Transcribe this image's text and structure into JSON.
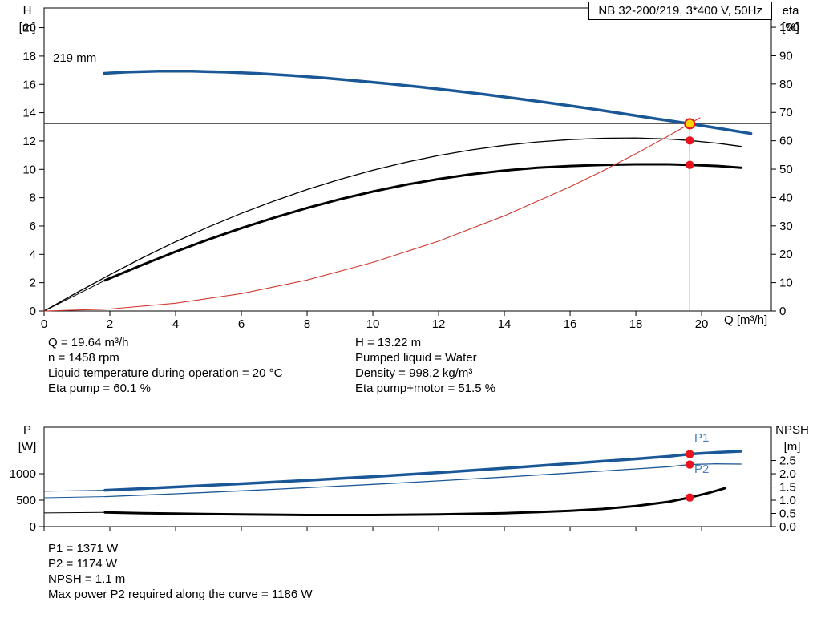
{
  "axes_text": {
    "h": [
      "H",
      "[m]"
    ],
    "eta": [
      "eta",
      "[%]"
    ],
    "q": "Q [m³/h]",
    "p": [
      "P",
      "[W]"
    ],
    "npsh": [
      "NPSH",
      "[m]"
    ]
  },
  "info_top_left": [
    "Q = 19.64 m³/h",
    "n = 1458 rpm",
    "Liquid temperature during operation = 20 °C",
    "Eta pump = 60.1 %"
  ],
  "info_top_right": [
    "H = 13.22 m",
    "Pumped liquid = Water",
    "Density = 998.2 kg/m³",
    "Eta pump+motor = 51.5 %"
  ],
  "info_bottom": [
    "P1 = 1371 W",
    "P2 = 1174 W",
    "NPSH = 1.1 m",
    "Max power P2 required along the curve = 1186 W"
  ],
  "colors": {
    "curve_blue": "#1a5796",
    "curve_black": "#000000",
    "curve_red": "#d03a30",
    "dot_red": "#e8131d",
    "dot_yellow": "#ffd400",
    "label_blue": "#4d7ebf",
    "duty_line": "#444444"
  },
  "chart_data": [
    {
      "type": "line",
      "title": "NB 32-200/219, 3*400 V, 50Hz",
      "x_axis": {
        "label": "Q [m³/h]",
        "min": 0,
        "max": 20,
        "tick_step": 2,
        "overshoot_max": 22.12
      },
      "y_left": {
        "label": "H [m]",
        "min": 0,
        "max": 20,
        "tick_step": 2,
        "overshoot_max": 21.39
      },
      "y_right": {
        "label": "eta [%]",
        "min": 0,
        "max": 100,
        "tick_step": 10,
        "overshoot_max": 106.8
      },
      "duty_point": {
        "q": 19.64,
        "h": 13.22
      },
      "series": [
        {
          "name": "head-curve",
          "label": "219 mm",
          "axis": "left",
          "color": "blue",
          "width": 3.5,
          "points": [
            [
              1.83,
              16.78
            ],
            [
              2.5,
              16.87
            ],
            [
              3.5,
              16.93
            ],
            [
              4.5,
              16.93
            ],
            [
              5.5,
              16.87
            ],
            [
              6.5,
              16.77
            ],
            [
              7.5,
              16.63
            ],
            [
              8.5,
              16.46
            ],
            [
              9.5,
              16.26
            ],
            [
              10.5,
              16.04
            ],
            [
              11.5,
              15.8
            ],
            [
              12.5,
              15.54
            ],
            [
              13.5,
              15.26
            ],
            [
              14.5,
              14.96
            ],
            [
              15.5,
              14.65
            ],
            [
              16.5,
              14.32
            ],
            [
              17.5,
              13.97
            ],
            [
              18.5,
              13.61
            ],
            [
              19.64,
              13.22
            ],
            [
              20.6,
              12.87
            ],
            [
              21.5,
              12.52
            ]
          ]
        },
        {
          "name": "eta-pump",
          "axis": "right",
          "color": "black",
          "width": 1.3,
          "points": [
            [
              0,
              0
            ],
            [
              1,
              6.5
            ],
            [
              2,
              12.8
            ],
            [
              3,
              18.8
            ],
            [
              4,
              24.4
            ],
            [
              5,
              29.6
            ],
            [
              6,
              34.4
            ],
            [
              7,
              38.8
            ],
            [
              8,
              42.8
            ],
            [
              9,
              46.4
            ],
            [
              10,
              49.6
            ],
            [
              11,
              52.4
            ],
            [
              12,
              54.8
            ],
            [
              13,
              56.8
            ],
            [
              14,
              58.4
            ],
            [
              15,
              59.6
            ],
            [
              16,
              60.4
            ],
            [
              17,
              60.9
            ],
            [
              18,
              61.0
            ],
            [
              19,
              60.6
            ],
            [
              19.64,
              60.1
            ],
            [
              20.5,
              59.1
            ],
            [
              21.2,
              58.0
            ]
          ]
        },
        {
          "name": "eta-pump-motor",
          "axis": "right",
          "color": "black",
          "width": 3,
          "lead": [
            [
              0,
              0
            ],
            [
              1.85,
              10.8
            ]
          ],
          "points": [
            [
              1.85,
              10.8
            ],
            [
              3,
              16.3
            ],
            [
              4,
              20.9
            ],
            [
              5,
              25.2
            ],
            [
              6,
              29.2
            ],
            [
              7,
              32.9
            ],
            [
              8,
              36.3
            ],
            [
              9,
              39.4
            ],
            [
              10,
              42.1
            ],
            [
              11,
              44.5
            ],
            [
              12,
              46.5
            ],
            [
              13,
              48.2
            ],
            [
              14,
              49.5
            ],
            [
              15,
              50.5
            ],
            [
              16,
              51.1
            ],
            [
              17,
              51.5
            ],
            [
              18,
              51.7
            ],
            [
              19,
              51.7
            ],
            [
              19.64,
              51.5
            ],
            [
              20.5,
              51.1
            ],
            [
              21.2,
              50.5
            ]
          ]
        },
        {
          "name": "system-curve",
          "axis": "left",
          "color": "red",
          "width": 1.1,
          "points": [
            [
              0,
              0
            ],
            [
              2,
              0.14
            ],
            [
              4,
              0.55
            ],
            [
              6,
              1.23
            ],
            [
              8,
              2.19
            ],
            [
              10,
              3.43
            ],
            [
              12,
              4.93
            ],
            [
              14,
              6.72
            ],
            [
              16,
              8.77
            ],
            [
              17,
              9.9
            ],
            [
              18,
              11.1
            ],
            [
              19,
              12.37
            ],
            [
              19.64,
              13.22
            ],
            [
              19.95,
              13.64
            ]
          ]
        }
      ],
      "markers": [
        {
          "q": 19.64,
          "value": 13.22,
          "axis": "left",
          "style": "yellow"
        },
        {
          "q": 19.64,
          "value": 60.1,
          "axis": "right",
          "style": "red"
        },
        {
          "q": 19.64,
          "value": 51.5,
          "axis": "right",
          "style": "red"
        }
      ]
    },
    {
      "type": "line",
      "x_axis": {
        "label": "Q [m³/h]",
        "min": 0,
        "max": 20,
        "tick_step": 2,
        "overshoot_max": 22.12,
        "show_labels": false
      },
      "y_left": {
        "label": "P [W]",
        "min": 0,
        "max": 1000,
        "tick_step": 500,
        "overshoot_max": 1879
      },
      "y_right": {
        "label": "NPSH [m]",
        "min": 0,
        "max": 2.5,
        "tick_step": 0.5,
        "overshoot_max": 3.76,
        "decimals": 1
      },
      "series": [
        {
          "name": "p1-power",
          "axis": "left",
          "color": "blue",
          "width": 3.5,
          "lead": [
            [
              0,
              668
            ],
            [
              1.85,
              688
            ]
          ],
          "points": [
            [
              1.85,
              688
            ],
            [
              3,
              720
            ],
            [
              4,
              750
            ],
            [
              5,
              780
            ],
            [
              6,
              811
            ],
            [
              7,
              843
            ],
            [
              8,
              876
            ],
            [
              9,
              910
            ],
            [
              10,
              946
            ],
            [
              11,
              983
            ],
            [
              12,
              1022
            ],
            [
              13,
              1062
            ],
            [
              14,
              1104
            ],
            [
              15,
              1147
            ],
            [
              16,
              1191
            ],
            [
              17,
              1236
            ],
            [
              18,
              1281
            ],
            [
              19,
              1327
            ],
            [
              19.64,
              1371
            ],
            [
              20.5,
              1403
            ],
            [
              21.2,
              1425
            ]
          ]
        },
        {
          "name": "p2-power",
          "axis": "left",
          "color": "blue",
          "width": 1.3,
          "lead": [
            [
              0,
              545
            ],
            [
              1.85,
              567
            ]
          ],
          "points": [
            [
              1.85,
              567
            ],
            [
              3,
              596
            ],
            [
              4,
              622
            ],
            [
              5,
              649
            ],
            [
              6,
              677
            ],
            [
              7,
              706
            ],
            [
              8,
              736
            ],
            [
              9,
              767
            ],
            [
              10,
              799
            ],
            [
              11,
              832
            ],
            [
              12,
              866
            ],
            [
              13,
              901
            ],
            [
              14,
              937
            ],
            [
              15,
              974
            ],
            [
              16,
              1012
            ],
            [
              17,
              1051
            ],
            [
              18,
              1091
            ],
            [
              19,
              1132
            ],
            [
              19.64,
              1174
            ],
            [
              20.4,
              1186
            ],
            [
              21.2,
              1182
            ]
          ]
        },
        {
          "name": "npsh",
          "axis": "right",
          "color": "black",
          "width": 3,
          "lead": [
            [
              0,
              0.52
            ],
            [
              1.85,
              0.54
            ]
          ],
          "points": [
            [
              1.85,
              0.54
            ],
            [
              3,
              0.51
            ],
            [
              4,
              0.49
            ],
            [
              6,
              0.46
            ],
            [
              8,
              0.44
            ],
            [
              10,
              0.44
            ],
            [
              12,
              0.46
            ],
            [
              14,
              0.51
            ],
            [
              15,
              0.55
            ],
            [
              16,
              0.6
            ],
            [
              17,
              0.67
            ],
            [
              18,
              0.78
            ],
            [
              19,
              0.94
            ],
            [
              19.64,
              1.1
            ],
            [
              20.2,
              1.27
            ],
            [
              20.7,
              1.45
            ]
          ]
        }
      ],
      "markers": [
        {
          "q": 19.64,
          "value": 1371,
          "axis": "left",
          "style": "red",
          "label": "P1"
        },
        {
          "q": 19.64,
          "value": 1174,
          "axis": "left",
          "style": "red",
          "label": "P2"
        },
        {
          "q": 19.64,
          "value": 1.1,
          "axis": "right",
          "style": "red"
        }
      ]
    }
  ]
}
